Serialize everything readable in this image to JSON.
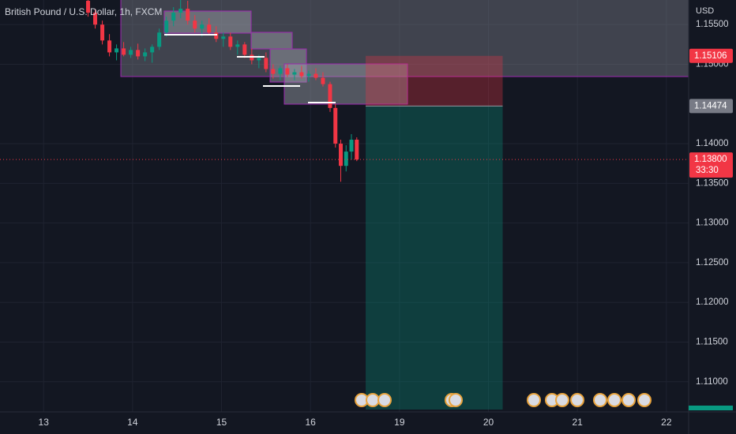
{
  "chart_data": {
    "type": "candlestick",
    "title": "British Pound / U.S. Dollar, 1h, FXCM",
    "currency": "USD",
    "up_color": "#089981",
    "down_color": "#f23645",
    "grid": true,
    "x": [
      0.5,
      0.58,
      0.66,
      0.74,
      0.82,
      0.9,
      0.98,
      1.06,
      1.14,
      1.22,
      1.3,
      1.38,
      1.46,
      1.54,
      1.62,
      1.7,
      1.78,
      1.86,
      1.94,
      2.02,
      2.1,
      2.18,
      2.26,
      2.34,
      2.42,
      2.5,
      2.58,
      2.66,
      2.74,
      2.82,
      2.9,
      2.98,
      3.06,
      3.14,
      3.22,
      3.28,
      3.34,
      3.4,
      3.46,
      3.52
    ],
    "open": [
      1.158,
      1.1565,
      1.155,
      1.153,
      1.1515,
      1.152,
      1.1512,
      1.1518,
      1.151,
      1.1515,
      1.1522,
      1.154,
      1.1555,
      1.1565,
      1.157,
      1.1555,
      1.1545,
      1.155,
      1.154,
      1.1532,
      1.1535,
      1.1522,
      1.1525,
      1.1512,
      1.1505,
      1.1508,
      1.1494,
      1.1488,
      1.1495,
      1.1487,
      1.149,
      1.1485,
      1.1488,
      1.1483,
      1.1475,
      1.1445,
      1.14,
      1.1372,
      1.139,
      1.1405
    ],
    "high": [
      1.1582,
      1.157,
      1.1555,
      1.1538,
      1.1525,
      1.1528,
      1.1522,
      1.1526,
      1.152,
      1.1525,
      1.1545,
      1.156,
      1.1572,
      1.1582,
      1.158,
      1.1562,
      1.1555,
      1.1558,
      1.1548,
      1.154,
      1.154,
      1.153,
      1.1528,
      1.152,
      1.1512,
      1.1515,
      1.15,
      1.1498,
      1.15,
      1.1494,
      1.1498,
      1.1492,
      1.1495,
      1.149,
      1.1478,
      1.145,
      1.1405,
      1.1398,
      1.1412,
      1.1408
    ],
    "low": [
      1.156,
      1.1545,
      1.1525,
      1.151,
      1.1505,
      1.151,
      1.1508,
      1.1506,
      1.1504,
      1.1502,
      1.1518,
      1.1535,
      1.1548,
      1.1558,
      1.155,
      1.154,
      1.1535,
      1.1538,
      1.1528,
      1.1522,
      1.1518,
      1.1512,
      1.1508,
      1.15,
      1.1495,
      1.149,
      1.1482,
      1.148,
      1.1484,
      1.148,
      1.1482,
      1.1478,
      1.148,
      1.1472,
      1.144,
      1.1395,
      1.1352,
      1.1365,
      1.138,
      1.1378
    ],
    "close": [
      1.1565,
      1.155,
      1.153,
      1.1515,
      1.152,
      1.1512,
      1.1518,
      1.151,
      1.1515,
      1.1522,
      1.154,
      1.1555,
      1.1565,
      1.157,
      1.1555,
      1.1545,
      1.155,
      1.154,
      1.1532,
      1.1535,
      1.1522,
      1.1525,
      1.1512,
      1.1505,
      1.1508,
      1.1494,
      1.1488,
      1.1495,
      1.1487,
      1.149,
      1.1485,
      1.1488,
      1.1483,
      1.1475,
      1.1445,
      1.14,
      1.1372,
      1.139,
      1.1405,
      1.138
    ],
    "xlim": [
      -0.49,
      7.25
    ],
    "ylim": [
      1.1062,
      1.1581
    ],
    "xticks": [
      {
        "value": 0,
        "label": "13"
      },
      {
        "value": 1,
        "label": "14"
      },
      {
        "value": 2,
        "label": "15"
      },
      {
        "value": 3,
        "label": "16"
      },
      {
        "value": 4,
        "label": "19"
      },
      {
        "value": 5,
        "label": "20"
      },
      {
        "value": 6,
        "label": "21"
      },
      {
        "value": 7,
        "label": "22"
      }
    ],
    "yticks": [
      {
        "value": 1.155,
        "label": "1.15500"
      },
      {
        "value": 1.15,
        "label": "1.15000"
      },
      {
        "value": 1.14,
        "label": "1.14000"
      },
      {
        "value": 1.135,
        "label": "1.13500"
      },
      {
        "value": 1.13,
        "label": "1.13000"
      },
      {
        "value": 1.125,
        "label": "1.12500"
      },
      {
        "value": 1.12,
        "label": "1.12000"
      },
      {
        "value": 1.115,
        "label": "1.11500"
      },
      {
        "value": 1.11,
        "label": "1.11000"
      }
    ],
    "position": {
      "start": 3.62,
      "end": 5.16,
      "entry": 1.14474,
      "stop": 1.15106,
      "target": 1.1065
    },
    "price_labels": [
      {
        "value": 1.15106,
        "label": "1.15106",
        "color": "#f23645"
      },
      {
        "value": 1.14474,
        "label": "1.14474",
        "color": "#787b86"
      }
    ],
    "last_price": {
      "value": 1.138,
      "label": "1.13800",
      "countdown": "33:30",
      "color": "#f23645"
    }
  }
}
